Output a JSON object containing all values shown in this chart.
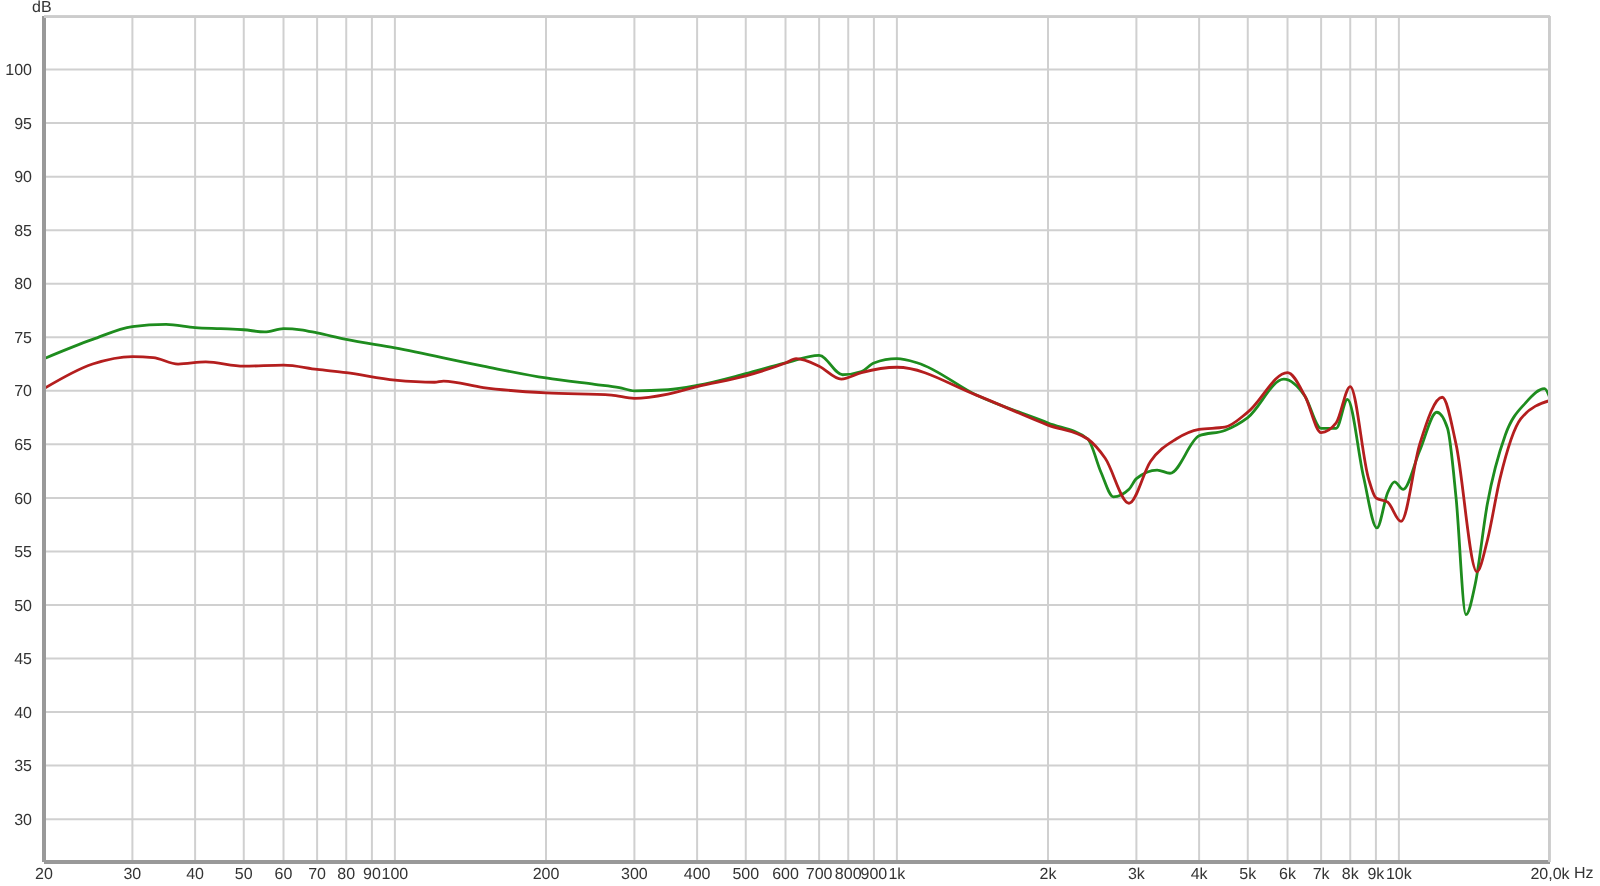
{
  "chart_data": {
    "type": "line",
    "xlabel": "Hz",
    "ylabel": "dB",
    "log": "x",
    "grid": true,
    "legend": false,
    "marker": "none",
    "line_style": "solid",
    "xlim": [
      20,
      20000
    ],
    "ylim": [
      26,
      105
    ],
    "xticks": [
      20,
      30,
      40,
      50,
      60,
      70,
      80,
      90,
      100,
      200,
      300,
      400,
      500,
      600,
      700,
      800,
      900,
      {
        "value": 1000,
        "label": "1k"
      },
      {
        "value": 2000,
        "label": "2k"
      },
      {
        "value": 3000,
        "label": "3k"
      },
      {
        "value": 4000,
        "label": "4k"
      },
      {
        "value": 5000,
        "label": "5k"
      },
      {
        "value": 6000,
        "label": "6k"
      },
      {
        "value": 7000,
        "label": "7k"
      },
      {
        "value": 8000,
        "label": "8k"
      },
      {
        "value": 9000,
        "label": "9k"
      },
      {
        "value": 10000,
        "label": "10k"
      },
      {
        "value": 20000,
        "label": "20,0k"
      }
    ],
    "yticks": [
      30,
      35,
      40,
      45,
      50,
      55,
      60,
      65,
      70,
      75,
      80,
      85,
      90,
      95,
      100
    ],
    "series": [
      {
        "color": "#1e8c1e",
        "x": [
          20,
          25,
          30,
          35,
          40,
          45,
          50,
          55,
          60,
          65,
          70,
          80,
          100,
          150,
          200,
          250,
          280,
          300,
          350,
          400,
          500,
          600,
          700,
          780,
          850,
          900,
          1000,
          1100,
          1440,
          2000,
          2400,
          2550,
          2700,
          2900,
          3000,
          3300,
          3500,
          4000,
          4500,
          5000,
          5900,
          6500,
          7000,
          7500,
          7900,
          8500,
          9040,
          9500,
          9800,
          10200,
          11000,
          11900,
          12500,
          13000,
          13600,
          14200,
          15000,
          16300,
          17900,
          19500,
          20000
        ],
        "values": [
          73,
          74.8,
          76,
          76.2,
          75.9,
          75.8,
          75.7,
          75.5,
          75.8,
          75.7,
          75.4,
          74.8,
          74,
          72.3,
          71.2,
          70.6,
          70.3,
          70,
          70.1,
          70.5,
          71.6,
          72.6,
          73.3,
          71.5,
          71.8,
          72.6,
          73,
          72.6,
          69.6,
          67,
          65.5,
          62.4,
          60.1,
          60.8,
          61.8,
          62.6,
          62.3,
          65.8,
          66.3,
          67.5,
          71.1,
          69.5,
          66.5,
          66.5,
          69.2,
          62,
          57.2,
          60.5,
          61.5,
          60.8,
          64.4,
          68,
          66.5,
          60,
          49.1,
          52,
          59.4,
          65.9,
          68.9,
          70.2,
          69.3
        ]
      },
      {
        "color": "#b41e1e",
        "x": [
          20,
          25,
          30,
          33,
          37,
          42,
          50,
          60,
          70,
          80,
          100,
          120,
          125,
          150,
          200,
          270,
          300,
          350,
          400,
          500,
          600,
          630,
          700,
          775,
          850,
          1000,
          1440,
          2000,
          2400,
          2600,
          2900,
          3200,
          3600,
          4000,
          4500,
          5000,
          6000,
          6500,
          7000,
          7500,
          8000,
          8700,
          9000,
          9500,
          10100,
          11000,
          12200,
          13000,
          14300,
          15000,
          15900,
          17500,
          20000
        ],
        "values": [
          70.2,
          72.5,
          73.2,
          73.1,
          72.5,
          72.7,
          72.3,
          72.4,
          72,
          71.7,
          71,
          70.8,
          70.9,
          70.3,
          69.8,
          69.6,
          69.3,
          69.7,
          70.4,
          71.4,
          72.6,
          73,
          72.3,
          71.1,
          71.7,
          72.2,
          69.6,
          66.8,
          65.5,
          63.7,
          59.5,
          63.4,
          65.5,
          66.4,
          66.6,
          68,
          71.7,
          69.5,
          66.1,
          67,
          70.4,
          61.8,
          60,
          59.6,
          57.8,
          65,
          69.4,
          65,
          53.1,
          56,
          61.8,
          67.4,
          69.1
        ]
      }
    ]
  }
}
